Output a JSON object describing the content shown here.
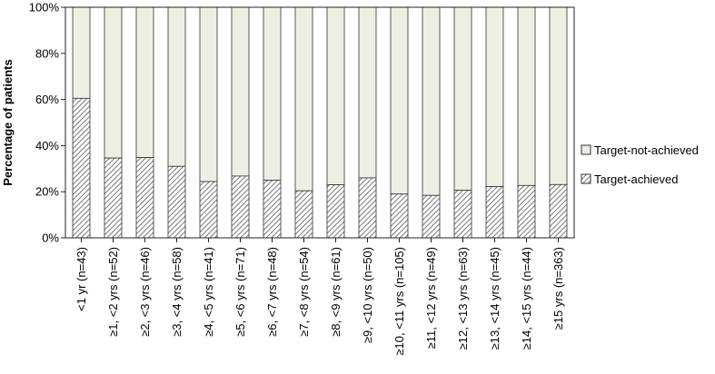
{
  "chart_data": {
    "type": "bar",
    "stacked": true,
    "percent": true,
    "ylabel": "Percentage of patients",
    "xlabel": "",
    "ylim": [
      0,
      100
    ],
    "yticks": [
      "0%",
      "20%",
      "40%",
      "60%",
      "80%",
      "100%"
    ],
    "categories": [
      "<1 yr (n=43)",
      "≥1, <2 yrs (n=52)",
      "≥2, <3 yrs (n=46)",
      "≥3, <4 yrs (n=58)",
      "≥4, <5 yrs (n=41)",
      "≥5, <6 yrs (n=71)",
      "≥6, <7 yrs (n=48)",
      "≥7, <8 yrs (n=54)",
      "≥8, <9 yrs (n=61)",
      "≥9, <10 yrs (n=50)",
      "≥10, <11 yrs (n=105)",
      "≥11, <12 yrs (n=49)",
      "≥12, <13 yrs (n=63)",
      "≥13, <14 yrs (n=45)",
      "≥14, <15 yrs (n=44)",
      "≥15 yrs (n=363)"
    ],
    "series": [
      {
        "name": "Target-achieved",
        "values": [
          60.5,
          34.6,
          34.8,
          31.0,
          24.4,
          26.8,
          25.0,
          20.4,
          23.0,
          26.0,
          19.0,
          18.4,
          20.6,
          22.2,
          22.7,
          23.1
        ]
      },
      {
        "name": "Target-not-achieved",
        "values": [
          39.5,
          65.4,
          65.2,
          69.0,
          75.6,
          73.2,
          75.0,
          79.6,
          77.0,
          74.0,
          81.0,
          81.6,
          79.4,
          77.8,
          77.3,
          76.9
        ]
      }
    ],
    "legend_position": "right",
    "grid": false,
    "colors": {
      "achieved_fill": "#ffffff",
      "achieved_hatch": "#555555",
      "not_achieved_fill": "#efeee3",
      "border": "#333333"
    }
  }
}
